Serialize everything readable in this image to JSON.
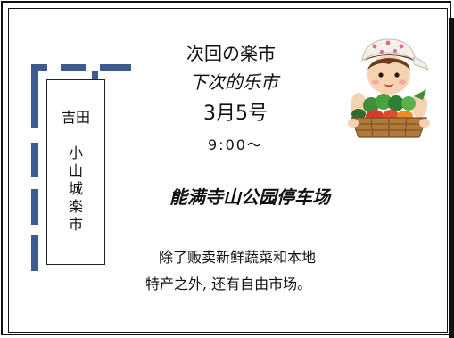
{
  "sign": {
    "name": "吉田",
    "market_chars": [
      "小",
      "山",
      "城",
      "楽",
      "市"
    ]
  },
  "poster": {
    "title_ja": "次回の楽市",
    "title_zh": "下次的乐市",
    "date": "3月5号",
    "time": "9:00～",
    "venue": "能满寺山公园停车场",
    "description_line1": "除了贩卖新鲜蔬菜和本地",
    "description_line2": "特产之外, 还有自由市场。"
  },
  "illustration": {
    "icon": "vendor-with-vegetable-basket-icon"
  },
  "colors": {
    "flag_blue": "#3e5a8f",
    "border": "#111111"
  }
}
